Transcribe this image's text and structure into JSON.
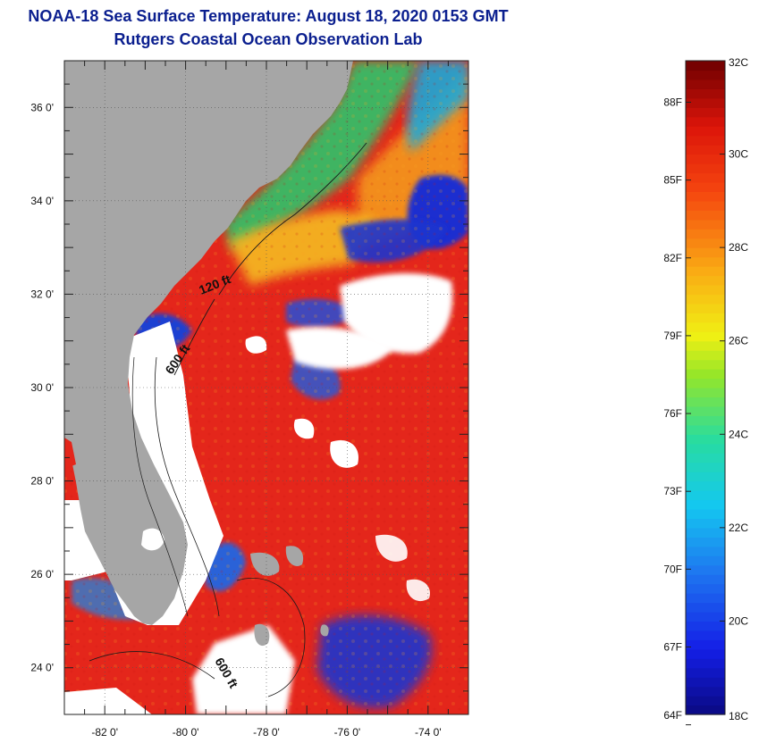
{
  "title": {
    "line1": "NOAA-18 Sea Surface Temperature:  August 18, 2020 0153 GMT",
    "line2": "Rutgers Coastal Ocean Observation Lab"
  },
  "map": {
    "lon_range": [
      -83,
      -73
    ],
    "lat_range": [
      23,
      37
    ],
    "lon_ticks": [
      {
        "value": -82,
        "label": "-82 0'"
      },
      {
        "value": -80,
        "label": "-80 0'"
      },
      {
        "value": -78,
        "label": "-78 0'"
      },
      {
        "value": -76,
        "label": "-76 0'"
      },
      {
        "value": -74,
        "label": "-74 0'"
      }
    ],
    "lat_ticks": [
      {
        "value": 36,
        "label": "36 0'"
      },
      {
        "value": 34,
        "label": "34 0'"
      },
      {
        "value": 32,
        "label": "32 0'"
      },
      {
        "value": 30,
        "label": "30 0'"
      },
      {
        "value": 28,
        "label": "28 0'"
      },
      {
        "value": 26,
        "label": "26 0'"
      },
      {
        "value": 24,
        "label": "24 0'"
      }
    ],
    "contours": [
      {
        "label": "120 ft"
      },
      {
        "label": "600 ft"
      },
      {
        "label": "600 ft"
      }
    ],
    "colors": {
      "land": "#a6a6a6",
      "cloud": "#ffffff",
      "warm": "#e8261a",
      "orange": "#f28a1a",
      "cool": "#2a56d6"
    }
  },
  "colorbar": {
    "range_c": [
      18,
      32
    ],
    "celsius_labels": [
      {
        "value": 32,
        "label": "32C"
      },
      {
        "value": 30,
        "label": "30C"
      },
      {
        "value": 28,
        "label": "28C"
      },
      {
        "value": 26,
        "label": "26C"
      },
      {
        "value": 24,
        "label": "24C"
      },
      {
        "value": 22,
        "label": "22C"
      },
      {
        "value": 20,
        "label": "20C"
      },
      {
        "value": 18,
        "label": "18C"
      }
    ],
    "fahrenheit_labels": [
      {
        "value": 88,
        "label": "88F"
      },
      {
        "value": 85,
        "label": "85F"
      },
      {
        "value": 82,
        "label": "82F"
      },
      {
        "value": 79,
        "label": "79F"
      },
      {
        "value": 76,
        "label": "76F"
      },
      {
        "value": 73,
        "label": "73F"
      },
      {
        "value": 70,
        "label": "70F"
      },
      {
        "value": 67,
        "label": "67F"
      },
      {
        "value": 64,
        "label": "64F"
      }
    ]
  }
}
